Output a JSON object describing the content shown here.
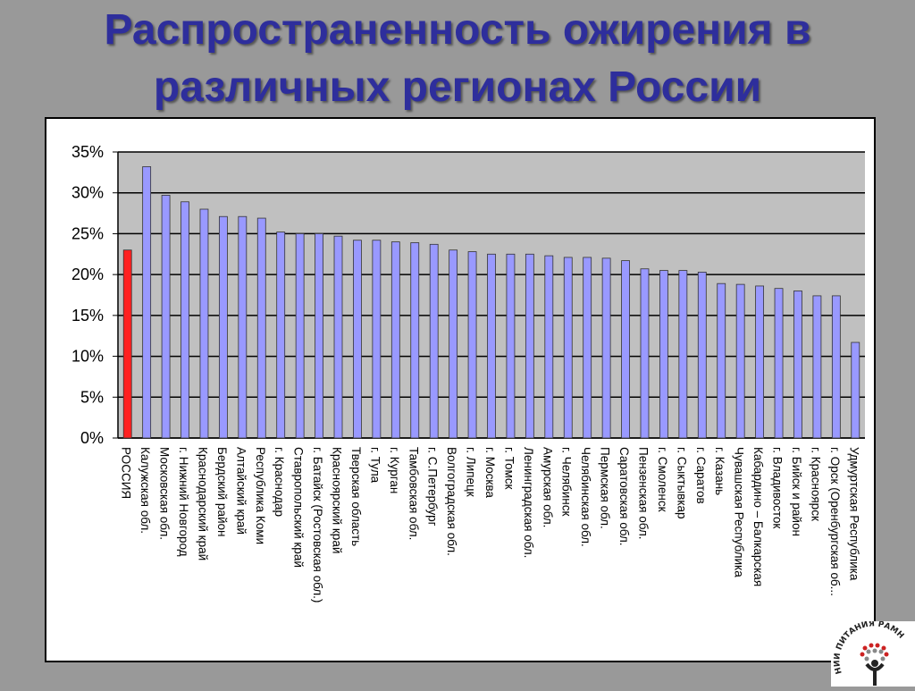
{
  "slide": {
    "title_line1": "Распространенность ожирения в",
    "title_line2": "различных регионах России"
  },
  "logo": {
    "text": "НИИ ПИТАНИЯ РАМН"
  },
  "chart_data": {
    "type": "bar",
    "title": "Распространенность ожирения в различных регионах России",
    "xlabel": "",
    "ylabel": "",
    "ylim": [
      0,
      35
    ],
    "yticks": [
      "0%",
      "5%",
      "10%",
      "15%",
      "20%",
      "25%",
      "30%",
      "35%"
    ],
    "grid": true,
    "highlight_color": "#FF2020",
    "bar_color": "#9999FF",
    "plot_background": "#C0C0C0",
    "categories": [
      "РОССИЯ",
      "Калужская обл.",
      "Московская обл.",
      "г. Нижний Новгород",
      "Краснодарский край",
      "Бердский район",
      "Алтайский край",
      "Республика Коми",
      "г. Краснодар",
      "Ставропольский край",
      "г. Батайск (Ростовская обл.)",
      "Красноярский край",
      "Тверская область",
      "г. Тула",
      "г. Курган",
      "Тамбовская обл.",
      "г. С.Петербург",
      "Волгоградская обл.",
      "г. Липецк",
      "г. Москва",
      "г. Томск",
      "Ленинградская обл.",
      "Амурская обл.",
      "г. Челябинск",
      "Челябинская обл.",
      "Пермская обл.",
      "Саратовская обл.",
      "Пензенская обл.",
      "г. Смоленск",
      "г. Сыктывкар",
      "г. Саратов",
      "г. Казань",
      "Чувашская Республика",
      "Кабардино – Балкарская",
      "г. Владивосток",
      "г. Бийск и район",
      "г. Красноярск",
      "г. Орск (Оренбургская об...",
      "Удмуртская Республика"
    ],
    "values": [
      23.0,
      33.2,
      29.7,
      28.9,
      28.0,
      27.1,
      27.1,
      26.9,
      25.2,
      25.0,
      25.0,
      24.7,
      24.2,
      24.2,
      24.0,
      23.9,
      23.7,
      23.0,
      22.8,
      22.5,
      22.5,
      22.5,
      22.3,
      22.1,
      22.1,
      22.0,
      21.7,
      20.7,
      20.5,
      20.5,
      20.3,
      18.9,
      18.8,
      18.6,
      18.3,
      18.0,
      17.4,
      17.4,
      11.7
    ],
    "highlight_index": 0
  }
}
